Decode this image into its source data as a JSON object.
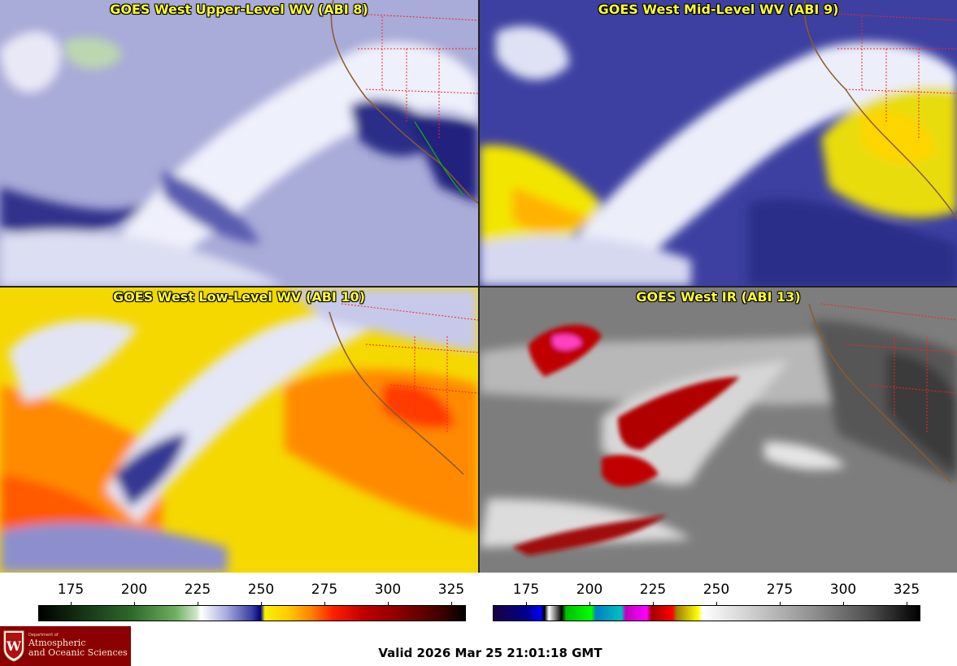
{
  "panels": [
    {
      "title": "GOES West Upper-Level WV (ABI 8)"
    },
    {
      "title": "GOES West Mid-Level WV (ABI 9)"
    },
    {
      "title": "GOES West Low-Level WV (ABI 10)"
    },
    {
      "title": "GOES West IR (ABI 13)"
    }
  ],
  "colorbars": [
    {
      "ticks": [
        "175",
        "200",
        "225",
        "250",
        "275",
        "300",
        "325"
      ]
    },
    {
      "ticks": [
        "175",
        "200",
        "225",
        "250",
        "275",
        "300",
        "325"
      ]
    }
  ],
  "logo": {
    "dept": "Department of",
    "line1": "Atmospheric",
    "line2": "and Oceanic Sciences",
    "colors": {
      "background": "#8b0000",
      "text": "#f5e6d0"
    }
  },
  "valid_time": "Valid 2026 Mar 25 21:01:18 GMT",
  "colors": {
    "title_text": "#ffff33",
    "state_borders": "#ff2020",
    "coastline": "#8b5a2b"
  }
}
